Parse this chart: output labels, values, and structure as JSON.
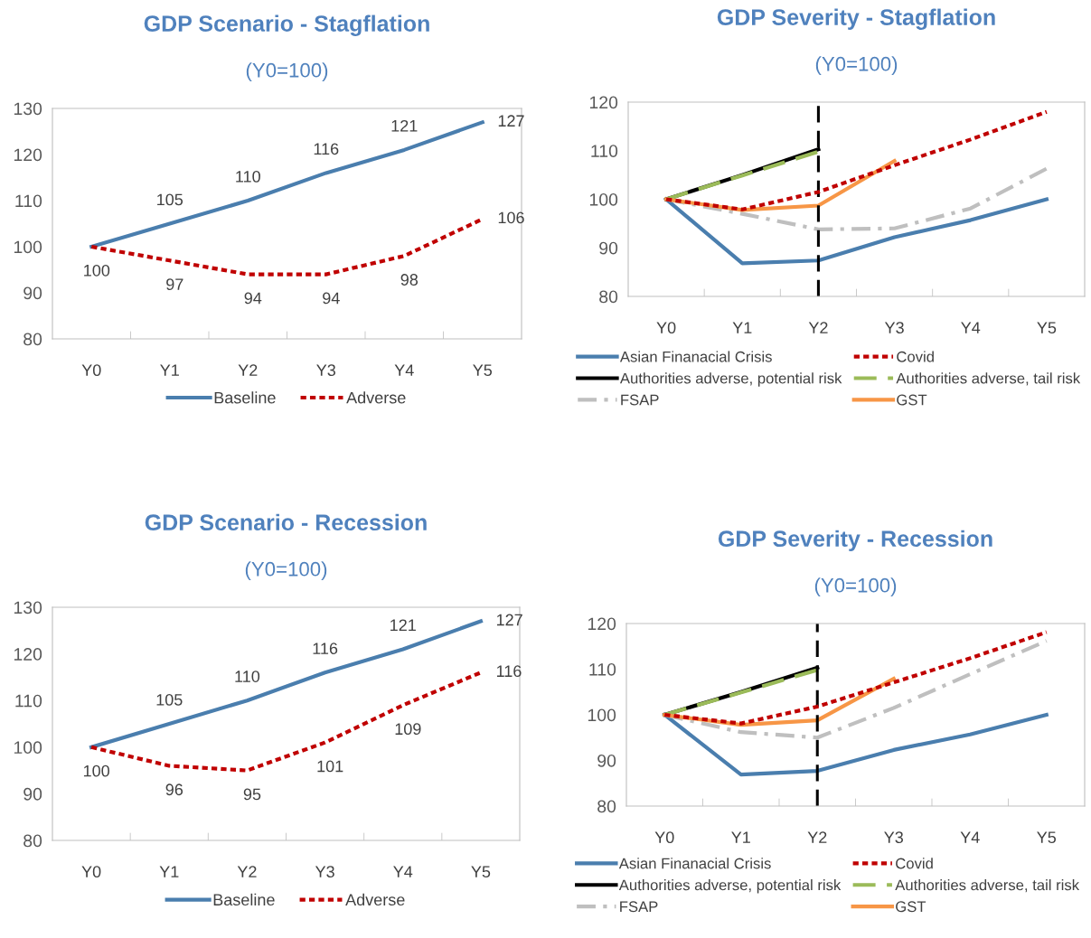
{
  "chart_data": [
    {
      "type": "line",
      "title": "GDP Scenario - Stagflation",
      "subtitle": "(Y0=100)",
      "categories": [
        "Y0",
        "Y1",
        "Y2",
        "Y3",
        "Y4",
        "Y5"
      ],
      "ylim": [
        80,
        130
      ],
      "yticks": [
        80,
        90,
        100,
        110,
        120,
        130
      ],
      "grid": false,
      "legend": "bottom",
      "series": [
        {
          "name": "Baseline",
          "color": "#4a7eae",
          "line_style": "solid",
          "values": [
            100,
            105,
            110,
            116,
            121,
            127
          ],
          "value_labels": [
            null,
            "105",
            "110",
            "116",
            "121",
            "127"
          ]
        },
        {
          "name": "Adverse",
          "color": "#c00000",
          "line_style": "dotted",
          "values": [
            100,
            97,
            94,
            94,
            98,
            106
          ],
          "value_labels": [
            "100",
            "97",
            "94",
            "94",
            "98",
            "106"
          ]
        }
      ]
    },
    {
      "type": "line",
      "title": "GDP Severity - Stagflation",
      "subtitle": "(Y0=100)",
      "categories": [
        "Y0",
        "Y1",
        "Y2",
        "Y3",
        "Y4",
        "Y5"
      ],
      "ylim": [
        80,
        120
      ],
      "yticks": [
        80,
        90,
        100,
        110,
        120
      ],
      "grid": false,
      "legend": "bottom",
      "ref_lines": [
        {
          "axis": "x",
          "value": "Y2",
          "color": "#000000",
          "line_style": "dashed"
        }
      ],
      "series": [
        {
          "name": "Asian Finanacial Crisis",
          "color": "#4a7eae",
          "line_style": "solid",
          "values": [
            100,
            86.8,
            87.4,
            92.2,
            95.7,
            100
          ]
        },
        {
          "name": "Covid",
          "color": "#c00000",
          "line_style": "dotted",
          "values": [
            100,
            97.9,
            101.5,
            107,
            112.3,
            118
          ]
        },
        {
          "name": "Authorities adverse, potential risk",
          "color": "#000000",
          "line_style": "solid",
          "values": [
            100,
            105,
            110.3,
            null,
            null,
            null
          ]
        },
        {
          "name": "Authorities adverse, tail risk",
          "color": "#9bbb59",
          "line_style": "dashed",
          "values": [
            100,
            104.9,
            109.8,
            null,
            null,
            null
          ]
        },
        {
          "name": "FSAP",
          "color": "#bfbfbf",
          "line_style": "dashdot",
          "values": [
            100,
            97,
            93.8,
            94,
            98.1,
            106.3
          ]
        },
        {
          "name": "GST",
          "color": "#f79646",
          "line_style": "solid",
          "values": [
            100,
            97.8,
            98.7,
            107.9,
            null,
            null
          ]
        }
      ]
    },
    {
      "type": "line",
      "title": "GDP Scenario - Recession",
      "subtitle": "(Y0=100)",
      "categories": [
        "Y0",
        "Y1",
        "Y2",
        "Y3",
        "Y4",
        "Y5"
      ],
      "ylim": [
        80,
        130
      ],
      "yticks": [
        80,
        90,
        100,
        110,
        120,
        130
      ],
      "grid": false,
      "legend": "bottom",
      "series": [
        {
          "name": "Baseline",
          "color": "#4a7eae",
          "line_style": "solid",
          "values": [
            100,
            105,
            110,
            116,
            121,
            127
          ],
          "value_labels": [
            null,
            "105",
            "110",
            "116",
            "121",
            "127"
          ]
        },
        {
          "name": "Adverse",
          "color": "#c00000",
          "line_style": "dotted",
          "values": [
            100,
            96,
            95,
            101,
            109,
            116
          ],
          "value_labels": [
            "100",
            "96",
            "95",
            "101",
            "109",
            "116"
          ]
        }
      ]
    },
    {
      "type": "line",
      "title": "GDP Severity - Recession",
      "subtitle": "(Y0=100)",
      "categories": [
        "Y0",
        "Y1",
        "Y2",
        "Y3",
        "Y4",
        "Y5"
      ],
      "ylim": [
        80,
        120
      ],
      "yticks": [
        80,
        90,
        100,
        110,
        120
      ],
      "grid": false,
      "legend": "bottom",
      "ref_lines": [
        {
          "axis": "x",
          "value": "Y2",
          "color": "#000000",
          "line_style": "dashed"
        }
      ],
      "series": [
        {
          "name": "Asian Finanacial Crisis",
          "color": "#4a7eae",
          "line_style": "solid",
          "values": [
            100,
            86.9,
            87.7,
            92.3,
            95.7,
            100
          ]
        },
        {
          "name": "Covid",
          "color": "#c00000",
          "line_style": "dotted",
          "values": [
            100,
            98.1,
            101.8,
            107.1,
            112.4,
            118.1
          ]
        },
        {
          "name": "Authorities adverse, potential risk",
          "color": "#000000",
          "line_style": "solid",
          "values": [
            100,
            105,
            110.3,
            null,
            null,
            null
          ]
        },
        {
          "name": "Authorities adverse, tail risk",
          "color": "#9bbb59",
          "line_style": "dashed",
          "values": [
            100,
            104.9,
            109.8,
            null,
            null,
            null
          ]
        },
        {
          "name": "FSAP",
          "color": "#bfbfbf",
          "line_style": "dashdot",
          "values": [
            100,
            96.2,
            95,
            101.5,
            108.9,
            116.2
          ]
        },
        {
          "name": "GST",
          "color": "#f79646",
          "line_style": "solid",
          "values": [
            100,
            97.8,
            98.8,
            107.9,
            null,
            null
          ]
        }
      ]
    }
  ]
}
